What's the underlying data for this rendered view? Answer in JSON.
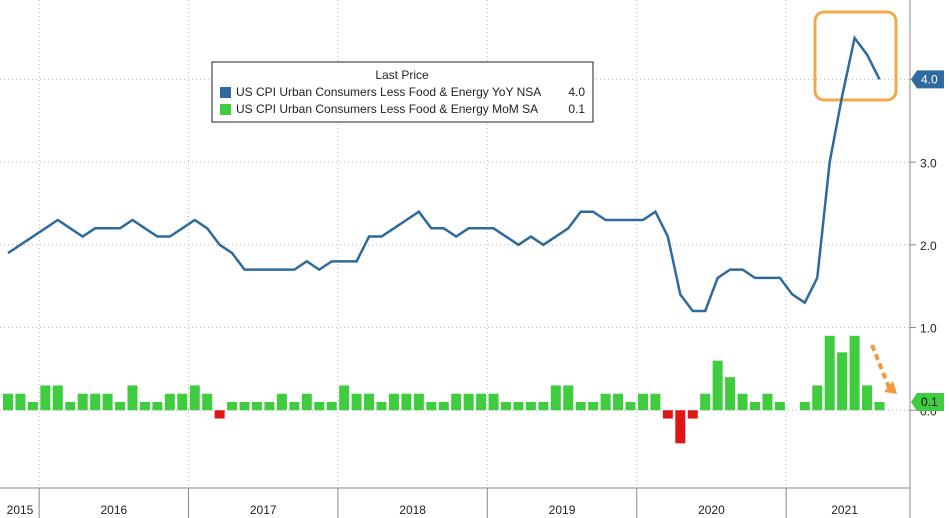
{
  "chart_data": {
    "type": "bar-line",
    "legend_title": "Last Price",
    "years": [
      "2015",
      "2016",
      "2017",
      "2018",
      "2019",
      "2020",
      "2021"
    ],
    "series": [
      {
        "name": "US CPI Urban Consumers Less Food & Energy YoY NSA",
        "kind": "line",
        "color": "#2e6a9e",
        "last_label": "4.0",
        "values": [
          1.9,
          2.0,
          2.1,
          2.2,
          2.3,
          2.2,
          2.1,
          2.2,
          2.2,
          2.2,
          2.3,
          2.2,
          2.1,
          2.1,
          2.2,
          2.3,
          2.2,
          2.0,
          1.9,
          1.7,
          1.7,
          1.7,
          1.7,
          1.7,
          1.8,
          1.7,
          1.8,
          1.8,
          1.8,
          2.1,
          2.1,
          2.2,
          2.3,
          2.4,
          2.2,
          2.2,
          2.1,
          2.2,
          2.2,
          2.2,
          2.1,
          2.0,
          2.1,
          2.0,
          2.1,
          2.2,
          2.4,
          2.4,
          2.3,
          2.3,
          2.3,
          2.3,
          2.4,
          2.1,
          1.4,
          1.2,
          1.2,
          1.6,
          1.7,
          1.7,
          1.6,
          1.6,
          1.6,
          1.4,
          1.3,
          1.6,
          3.0,
          3.8,
          4.5,
          4.3,
          4.0
        ]
      },
      {
        "name": "US CPI Urban Consumers Less Food & Energy MoM SA",
        "kind": "bar",
        "color": "#3fcc3f",
        "negative_color": "#e01515",
        "last_label": "0.1",
        "values": [
          0.2,
          0.2,
          0.1,
          0.3,
          0.3,
          0.1,
          0.2,
          0.2,
          0.2,
          0.1,
          0.3,
          0.1,
          0.1,
          0.2,
          0.2,
          0.3,
          0.2,
          -0.1,
          0.1,
          0.1,
          0.1,
          0.1,
          0.2,
          0.1,
          0.2,
          0.1,
          0.1,
          0.3,
          0.2,
          0.2,
          0.1,
          0.2,
          0.2,
          0.2,
          0.1,
          0.1,
          0.2,
          0.2,
          0.2,
          0.2,
          0.1,
          0.1,
          0.1,
          0.1,
          0.3,
          0.3,
          0.1,
          0.1,
          0.2,
          0.2,
          0.1,
          0.2,
          0.2,
          -0.1,
          -0.4,
          -0.1,
          0.2,
          0.6,
          0.4,
          0.2,
          0.1,
          0.2,
          0.1,
          0.0,
          0.1,
          0.3,
          0.9,
          0.7,
          0.9,
          0.3,
          0.1
        ]
      }
    ],
    "ylim": [
      -0.94,
      4.96
    ],
    "yticks": [
      {
        "value": 0,
        "label": "0.0"
      },
      {
        "value": 1,
        "label": "1.0"
      },
      {
        "value": 2,
        "label": "2.0"
      },
      {
        "value": 3,
        "label": "3.0"
      },
      {
        "value": 4,
        "label": "4.0"
      }
    ],
    "grid": true
  }
}
